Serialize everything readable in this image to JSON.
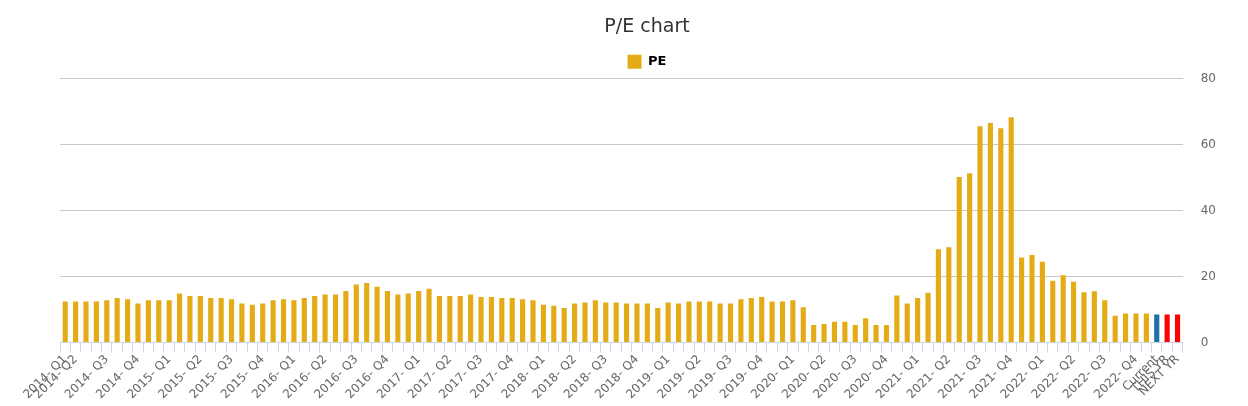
{
  "chart_data": {
    "type": "bar",
    "title": "P/E chart",
    "categories": [
      "2014- Q1",
      "2014- Q2",
      null,
      null,
      "2014- Q3",
      null,
      null,
      "2014- Q4",
      null,
      null,
      "2015- Q1",
      null,
      null,
      "2015- Q2",
      null,
      null,
      "2015- Q3",
      null,
      null,
      "2015- Q4",
      null,
      null,
      "2016- Q1",
      null,
      null,
      "2016- Q2",
      null,
      null,
      "2016- Q3",
      null,
      null,
      "2016- Q4",
      null,
      null,
      "2017- Q1",
      null,
      null,
      "2017- Q2",
      null,
      null,
      "2017- Q3",
      null,
      null,
      "2017- Q4",
      null,
      null,
      "2018- Q1",
      null,
      null,
      "2018- Q2",
      null,
      null,
      "2018- Q3",
      null,
      null,
      "2018- Q4",
      null,
      null,
      "2019- Q1",
      null,
      null,
      "2019- Q2",
      null,
      null,
      "2019- Q3",
      null,
      null,
      "2019- Q4",
      null,
      null,
      "2020- Q1",
      null,
      null,
      "2020- Q2",
      null,
      null,
      "2020- Q3",
      null,
      null,
      "2020- Q4",
      null,
      null,
      "2021- Q1",
      null,
      null,
      "2021- Q2",
      null,
      null,
      "2021- Q3",
      null,
      null,
      "2021- Q4",
      null,
      null,
      "2022- Q1",
      null,
      null,
      "2022- Q2",
      null,
      null,
      "2022- Q3",
      null,
      null,
      "2022- Q4",
      null,
      "Current",
      "THIS YR",
      "NEXT YR"
    ],
    "series": [
      {
        "name": "PE",
        "color": "#e3ac17",
        "colors": [
          "#e3ac17",
          "#e3ac17",
          "#e3ac17",
          "#e3ac17",
          "#e3ac17",
          "#e3ac17",
          "#e3ac17",
          "#e3ac17",
          "#e3ac17",
          "#e3ac17",
          "#e3ac17",
          "#e3ac17",
          "#e3ac17",
          "#e3ac17",
          "#e3ac17",
          "#e3ac17",
          "#e3ac17",
          "#e3ac17",
          "#e3ac17",
          "#e3ac17",
          "#e3ac17",
          "#e3ac17",
          "#e3ac17",
          "#e3ac17",
          "#e3ac17",
          "#e3ac17",
          "#e3ac17",
          "#e3ac17",
          "#e3ac17",
          "#e3ac17",
          "#e3ac17",
          "#e3ac17",
          "#e3ac17",
          "#e3ac17",
          "#e3ac17",
          "#e3ac17",
          "#e3ac17",
          "#e3ac17",
          "#e3ac17",
          "#e3ac17",
          "#e3ac17",
          "#e3ac17",
          "#e3ac17",
          "#e3ac17",
          "#e3ac17",
          "#e3ac17",
          "#e3ac17",
          "#e3ac17",
          "#e3ac17",
          "#e3ac17",
          "#e3ac17",
          "#e3ac17",
          "#e3ac17",
          "#e3ac17",
          "#e3ac17",
          "#e3ac17",
          "#e3ac17",
          "#e3ac17",
          "#e3ac17",
          "#e3ac17",
          "#e3ac17",
          "#e3ac17",
          "#e3ac17",
          "#e3ac17",
          "#e3ac17",
          "#e3ac17",
          "#e3ac17",
          "#e3ac17",
          "#e3ac17",
          "#e3ac17",
          "#e3ac17",
          "#e3ac17",
          "#e3ac17",
          "#e3ac17",
          "#e3ac17",
          "#e3ac17",
          "#e3ac17",
          "#e3ac17",
          "#e3ac17",
          "#e3ac17",
          "#e3ac17",
          "#e3ac17",
          "#e3ac17",
          "#e3ac17",
          "#e3ac17",
          "#e3ac17",
          "#e3ac17",
          "#e3ac17",
          "#e3ac17",
          "#e3ac17",
          "#e3ac17",
          "#e3ac17",
          "#e3ac17",
          "#e3ac17",
          "#e3ac17",
          "#e3ac17",
          "#e3ac17",
          "#e3ac17",
          "#e3ac17",
          "#e3ac17",
          "#e3ac17",
          "#e3ac17",
          "#e3ac17",
          "#e3ac17",
          "#e3ac17",
          "#1f6fa8",
          "#ff0000",
          "#ff0000"
        ],
        "values": [
          12.4,
          12.4,
          12.4,
          12.4,
          12.8,
          13.5,
          13.1,
          11.8,
          12.8,
          12.8,
          12.8,
          14.8,
          14.1,
          14.1,
          13.5,
          13.5,
          13.1,
          11.8,
          11.4,
          11.8,
          12.8,
          13.1,
          12.8,
          13.5,
          14.1,
          14.5,
          14.5,
          15.6,
          17.6,
          18.0,
          16.9,
          15.6,
          14.5,
          14.8,
          15.6,
          16.3,
          14.1,
          14.1,
          14.1,
          14.5,
          13.8,
          13.8,
          13.5,
          13.5,
          13.1,
          12.8,
          11.4,
          11.1,
          10.4,
          11.8,
          12.1,
          12.8,
          12.1,
          12.1,
          11.8,
          11.8,
          11.8,
          10.4,
          12.1,
          11.8,
          12.4,
          12.4,
          12.4,
          11.8,
          11.8,
          13.1,
          13.5,
          13.8,
          12.4,
          12.4,
          12.8,
          10.7,
          5.3,
          5.6,
          6.3,
          6.3,
          5.3,
          7.3,
          5.3,
          5.3,
          14.2,
          11.8,
          13.5,
          15.1,
          28.3,
          28.9,
          50.2,
          51.3,
          65.6,
          66.6,
          65.0,
          68.3,
          25.8,
          26.5,
          24.5,
          18.7,
          20.4,
          18.4,
          15.2,
          15.5,
          12.8,
          8.1,
          8.8,
          8.8,
          8.8,
          8.5,
          8.5,
          8.5
        ]
      }
    ],
    "ylim": [
      0,
      80
    ],
    "yticks": [
      0,
      20,
      40,
      60,
      80
    ],
    "grid": "y",
    "legend": "top"
  }
}
